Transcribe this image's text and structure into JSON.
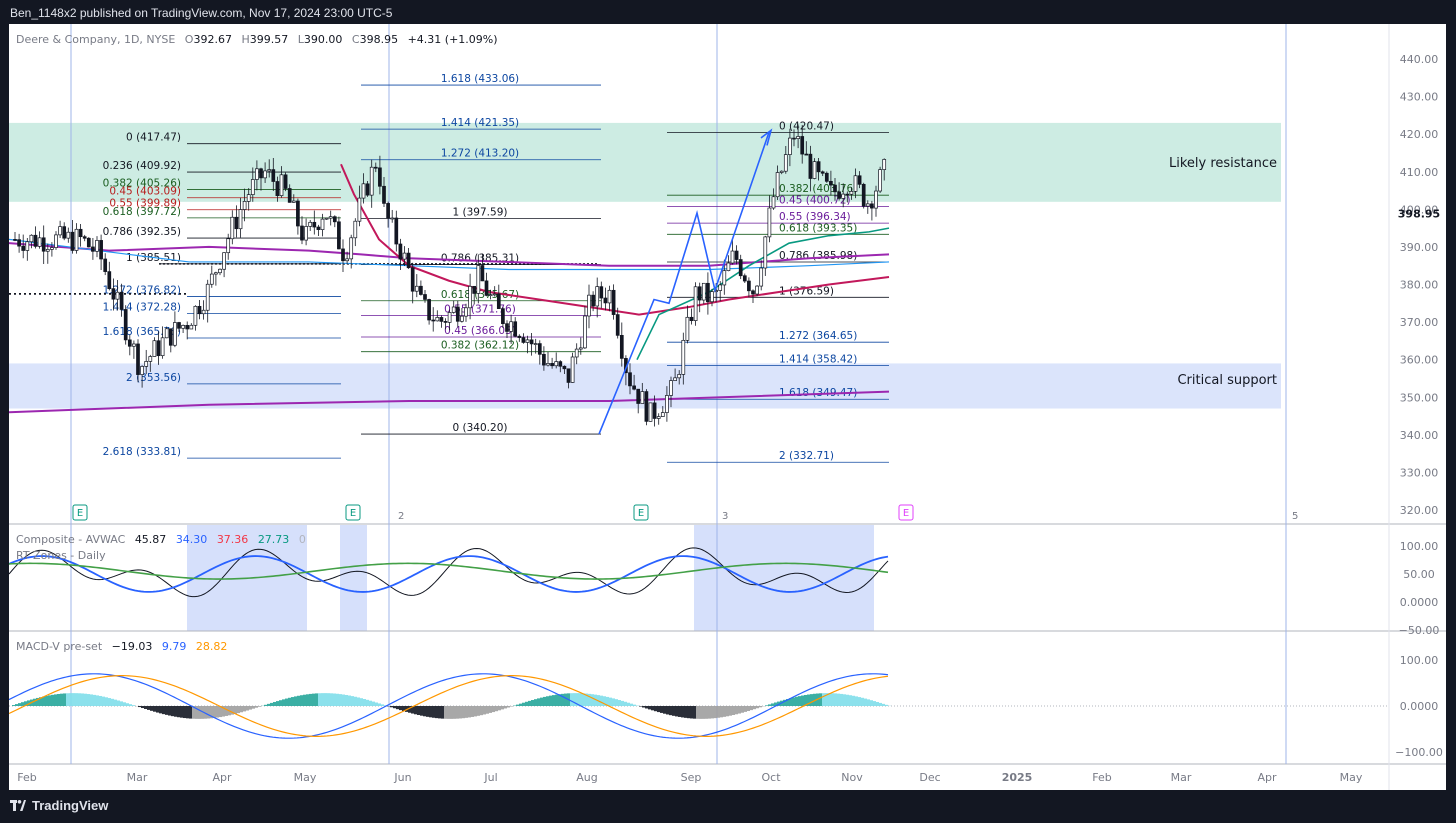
{
  "header": {
    "published": "Ben_1148x2 published on TradingView.com, Nov 17, 2024 23:00 UTC-5"
  },
  "footer": {
    "brand": "TradingView"
  },
  "legend": {
    "symbol": "Deere & Company, 1D, NYSE",
    "o_label": "O",
    "open": "392.67",
    "h_label": "H",
    "high": "399.57",
    "l_label": "L",
    "low": "390.00",
    "c_label": "C",
    "close": "398.95",
    "change": "+4.31 (+1.09%)"
  },
  "oscillator": {
    "title": "Composite - AVWAC",
    "v1": "45.87",
    "v2": "34.30",
    "v3": "37.36",
    "v4": "27.73",
    "v5": "0",
    "subtitle": "RT Zones - Daily",
    "ticks": [
      "100.00",
      "50.00",
      "0.0000",
      "−50.00"
    ]
  },
  "macd": {
    "title": "MACD-V pre-set",
    "v1": "−19.03",
    "v2": "9.79",
    "v3": "28.82",
    "ticks": [
      "100.00",
      "0.0000",
      "−100.00"
    ]
  },
  "zones": {
    "resistance": {
      "label": "Likely resistance",
      "from": 402,
      "to": 423,
      "color": "#cdece3"
    },
    "support": {
      "label": "Critical support",
      "from": 347,
      "to": 359,
      "color": "#dbe4fb"
    }
  },
  "colors": {
    "fib_blue": "#2962ff",
    "fib_red": "#b71c1c",
    "fib_green": "#1b5e20",
    "fib_purple": "#6a1b9a",
    "ma_red": "#c2185b",
    "ma_green": "#089981",
    "ma_purple": "#9c27b0",
    "ma_blue": "#2196f3"
  },
  "chart_data": [
    {
      "type": "candlestick",
      "title": "Deere & Company, 1D, NYSE",
      "ylim": [
        315,
        445
      ],
      "y_ticks": [
        "440.00",
        "430.00",
        "420.00",
        "410.00",
        "400.00",
        "390.00",
        "380.00",
        "370.00",
        "360.00",
        "350.00",
        "340.00",
        "330.00",
        "320.00"
      ],
      "last_price": "398.95",
      "x_labels": [
        "Feb",
        "Mar",
        "Apr",
        "May",
        "Jun",
        "Jul",
        "Aug",
        "Sep",
        "Oct",
        "Nov",
        "Dec",
        "2025",
        "Feb",
        "Mar",
        "Apr",
        "May"
      ],
      "separators": [
        "2",
        "3",
        "5"
      ],
      "earnings_markers": [
        "E",
        "E",
        "E",
        "E"
      ],
      "series_close_points": [
        {
          "date": "Jan 29",
          "close": 392
        },
        {
          "date": "Feb 06",
          "close": 388
        },
        {
          "date": "Feb 14",
          "close": 372
        },
        {
          "date": "Feb 21",
          "close": 358
        },
        {
          "date": "Mar 01",
          "close": 366
        },
        {
          "date": "Mar 08",
          "close": 370
        },
        {
          "date": "Mar 15",
          "close": 378
        },
        {
          "date": "Mar 22",
          "close": 392
        },
        {
          "date": "Mar 29",
          "close": 404
        },
        {
          "date": "Apr 05",
          "close": 410
        },
        {
          "date": "Apr 12",
          "close": 405
        },
        {
          "date": "Apr 19",
          "close": 392
        },
        {
          "date": "Apr 26",
          "close": 400
        },
        {
          "date": "May 03",
          "close": 388
        },
        {
          "date": "May 10",
          "close": 404
        },
        {
          "date": "May 15",
          "close": 414
        },
        {
          "date": "May 17",
          "close": 400
        },
        {
          "date": "May 24",
          "close": 388
        },
        {
          "date": "May 31",
          "close": 374
        },
        {
          "date": "Jun 07",
          "close": 370
        },
        {
          "date": "Jun 14",
          "close": 374
        },
        {
          "date": "Jun 21",
          "close": 382
        },
        {
          "date": "Jun 28",
          "close": 372
        },
        {
          "date": "Jul 05",
          "close": 368
        },
        {
          "date": "Jul 12",
          "close": 360
        },
        {
          "date": "Jul 19",
          "close": 355
        },
        {
          "date": "Jul 26",
          "close": 376
        },
        {
          "date": "Aug 02",
          "close": 378
        },
        {
          "date": "Aug 07",
          "close": 356
        },
        {
          "date": "Aug 14",
          "close": 345
        },
        {
          "date": "Aug 21",
          "close": 352
        },
        {
          "date": "Aug 28",
          "close": 378
        },
        {
          "date": "Sep 04",
          "close": 376
        },
        {
          "date": "Sep 11",
          "close": 388
        },
        {
          "date": "Sep 18",
          "close": 378
        },
        {
          "date": "Sep 25",
          "close": 404
        },
        {
          "date": "Oct 02",
          "close": 420
        },
        {
          "date": "Oct 09",
          "close": 410
        },
        {
          "date": "Oct 16",
          "close": 404
        },
        {
          "date": "Oct 23",
          "close": 408
        },
        {
          "date": "Oct 30",
          "close": 402
        },
        {
          "date": "Nov 06",
          "close": 410
        },
        {
          "date": "Nov 11",
          "close": 398
        },
        {
          "date": "Nov 14",
          "close": 392
        },
        {
          "date": "Nov 15",
          "close": 398.95
        }
      ],
      "fib_levels": [
        {
          "label": "0 (417.47)",
          "price": 417.47,
          "color": "#131722",
          "group": 1
        },
        {
          "label": "0.236 (409.92)",
          "price": 409.92,
          "color": "#131722",
          "group": 1
        },
        {
          "label": "0.382 (405.26)",
          "price": 405.26,
          "color": "#1b5e20",
          "group": 1
        },
        {
          "label": "0.45 (403.09)",
          "price": 403.09,
          "color": "#b71c1c",
          "group": 1
        },
        {
          "label": "0.55 (399.89)",
          "price": 399.89,
          "color": "#b71c1c",
          "group": 1
        },
        {
          "label": "0.618 (397.72)",
          "price": 397.72,
          "color": "#1b5e20",
          "group": 1
        },
        {
          "label": "0.786 (392.35)",
          "price": 392.35,
          "color": "#131722",
          "group": 1
        },
        {
          "label": "1 (385.51)",
          "price": 385.51,
          "color": "#131722",
          "group": 1
        },
        {
          "label": "1.272 (376.82)",
          "price": 376.82,
          "color": "#0d47a1",
          "group": 1
        },
        {
          "label": "1.414 (372.28)",
          "price": 372.28,
          "color": "#0d47a1",
          "group": 1
        },
        {
          "label": "1.618 (365.76)",
          "price": 365.76,
          "color": "#0d47a1",
          "group": 1
        },
        {
          "label": "2 (353.56)",
          "price": 353.56,
          "color": "#0d47a1",
          "group": 1
        },
        {
          "label": "2.618 (333.81)",
          "price": 333.81,
          "color": "#0d47a1",
          "group": 1
        },
        {
          "label": "1.618 (433.06)",
          "price": 433.06,
          "color": "#0d47a1",
          "group": 2
        },
        {
          "label": "1.414 (421.35)",
          "price": 421.35,
          "color": "#0d47a1",
          "group": 2
        },
        {
          "label": "1.272 (413.20)",
          "price": 413.2,
          "color": "#0d47a1",
          "group": 2
        },
        {
          "label": "1 (397.59)",
          "price": 397.59,
          "color": "#131722",
          "group": 2
        },
        {
          "label": "0.786 (385.31)",
          "price": 385.31,
          "color": "#131722",
          "group": 2
        },
        {
          "label": "0.618 (375.67)",
          "price": 375.67,
          "color": "#1b5e20",
          "group": 2
        },
        {
          "label": "0.55 (371.76)",
          "price": 371.76,
          "color": "#6a1b9a",
          "group": 2
        },
        {
          "label": "0.45 (366.03)",
          "price": 366.03,
          "color": "#6a1b9a",
          "group": 2
        },
        {
          "label": "0.382 (362.12)",
          "price": 362.12,
          "color": "#1b5e20",
          "group": 2
        },
        {
          "label": "0 (340.20)",
          "price": 340.2,
          "color": "#131722",
          "group": 2
        },
        {
          "label": "0 (420.47)",
          "price": 420.47,
          "color": "#131722",
          "group": 3
        },
        {
          "label": "0.382 (403.76)",
          "price": 403.76,
          "color": "#1b5e20",
          "group": 3
        },
        {
          "label": "0.45 (400.72)",
          "price": 400.72,
          "color": "#6a1b9a",
          "group": 3
        },
        {
          "label": "0.55 (396.34)",
          "price": 396.34,
          "color": "#6a1b9a",
          "group": 3
        },
        {
          "label": "0.618 (393.35)",
          "price": 393.35,
          "color": "#1b5e20",
          "group": 3
        },
        {
          "label": "0.786 (385.98)",
          "price": 385.98,
          "color": "#131722",
          "group": 3
        },
        {
          "label": "1 (376.59)",
          "price": 376.59,
          "color": "#131722",
          "group": 3
        },
        {
          "label": "1.272 (364.65)",
          "price": 364.65,
          "color": "#0d47a1",
          "group": 3
        },
        {
          "label": "1.414 (358.42)",
          "price": 358.42,
          "color": "#0d47a1",
          "group": 3
        },
        {
          "label": "1.618 (349.47)",
          "price": 349.47,
          "color": "#0d47a1",
          "group": 3
        },
        {
          "label": "2 (332.71)",
          "price": 332.71,
          "color": "#0d47a1",
          "group": 3
        }
      ]
    },
    {
      "type": "line",
      "title": "Composite - AVWAC",
      "ylim": [
        -50,
        110
      ]
    },
    {
      "type": "line",
      "title": "MACD-V pre-set",
      "ylim": [
        -110,
        125
      ]
    }
  ]
}
